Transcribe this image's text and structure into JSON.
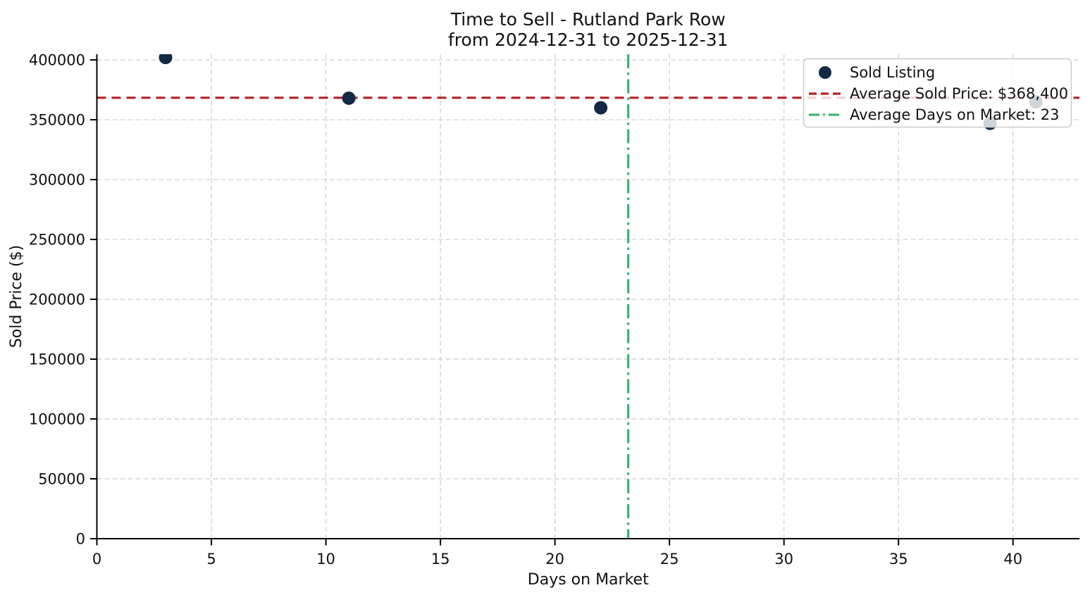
{
  "figure": {
    "background": "#ffffff"
  },
  "chart_data": {
    "type": "scatter",
    "title": "Time to Sell - Rutland Park Row",
    "subtitle": "from 2024-12-31 to 2025-12-31",
    "xlabel": "Days on Market",
    "ylabel": "Sold Price ($)",
    "xlim": [
      0,
      42.9
    ],
    "ylim": [
      0,
      404750
    ],
    "x_ticks": [
      0,
      5,
      10,
      15,
      20,
      25,
      30,
      35,
      40
    ],
    "y_ticks": [
      0,
      50000,
      100000,
      150000,
      200000,
      250000,
      300000,
      350000,
      400000
    ],
    "grid": true,
    "grid_color": "#cccccc",
    "text_color": "#111111",
    "spine_color": "#000000",
    "series": [
      {
        "name": "Sold Listing",
        "type": "scatter",
        "color": "#132944",
        "points": [
          [
            3,
            402000
          ],
          [
            11,
            368000
          ],
          [
            22,
            360000
          ],
          [
            39,
            347000
          ],
          [
            41,
            365000
          ]
        ]
      },
      {
        "name": "Average Sold Price: $368,400",
        "type": "hline",
        "value": 368400,
        "color": "#B22222",
        "linestyle": "dashed"
      },
      {
        "name": "Average Days on Market: 23",
        "type": "vline",
        "value": 23.2,
        "color": "#3CB371",
        "linestyle": "dashdot"
      }
    ],
    "legend": {
      "position": "upper right",
      "items": [
        {
          "label": "Sold Listing",
          "marker": "circle",
          "color": "#132944"
        },
        {
          "label": "Average Sold Price: $368,400",
          "marker": "dashed-line",
          "color": "#B22222"
        },
        {
          "label": "Average Days on Market: 23",
          "marker": "dashdot-line",
          "color": "#3CB371"
        }
      ]
    }
  }
}
